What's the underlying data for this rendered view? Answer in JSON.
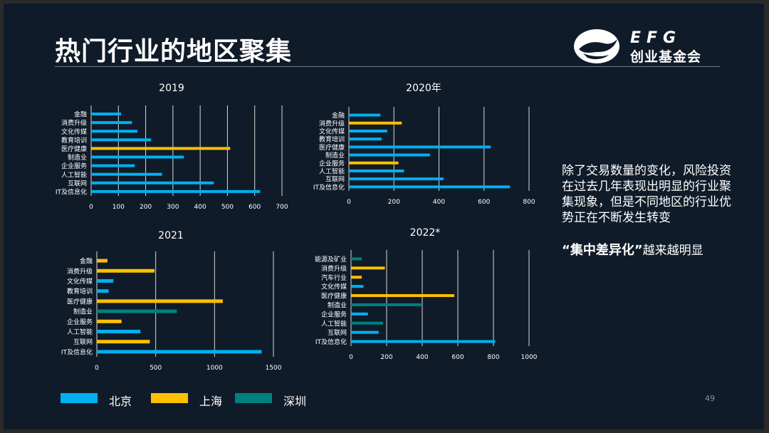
{
  "slide": {
    "title": "热门行业的地区聚集",
    "logo_text": "EFG",
    "logo_subtitle": "创业基金会",
    "side_text": "除了交易数量的变化，风险投资在过去几年表现出明显的行业聚集现象，但是不同地区的行业优势正在不断发生转变",
    "emphasis_quote": "“集中差异化”",
    "emphasis_rest": "越来越明显",
    "page_number": "49"
  },
  "colors": {
    "北京": "#00b0f0",
    "上海": "#ffc000",
    "深圳": "#00807f"
  },
  "legend": [
    {
      "label": "北京",
      "color": "#00b0f0"
    },
    {
      "label": "上海",
      "color": "#ffc000"
    },
    {
      "label": "深圳",
      "color": "#00807f"
    }
  ],
  "chart_data": [
    {
      "type": "bar",
      "orientation": "horizontal",
      "title": "2019",
      "xlim": [
        0,
        700
      ],
      "xticks": [
        0,
        100,
        200,
        300,
        400,
        500,
        600,
        700
      ],
      "categories": [
        "金融",
        "消费升级",
        "文化传媒",
        "教育培训",
        "医疗健康",
        "制造业",
        "企业服务",
        "人工智能",
        "互联网",
        "IT及信息化"
      ],
      "values": [
        110,
        150,
        170,
        220,
        510,
        340,
        160,
        260,
        450,
        620
      ],
      "region": [
        "北京",
        "北京",
        "北京",
        "北京",
        "上海",
        "北京",
        "北京",
        "北京",
        "北京",
        "北京"
      ],
      "grid": true
    },
    {
      "type": "bar",
      "orientation": "horizontal",
      "title": "2020年",
      "xlim": [
        0,
        800
      ],
      "xticks": [
        0,
        200,
        400,
        600,
        800
      ],
      "categories": [
        "金融",
        "消费升级",
        "文化传媒",
        "教育培训",
        "医疗健康",
        "制造业",
        "企业服务",
        "人工智能",
        "互联网",
        "IT及信息化"
      ],
      "values": [
        140,
        235,
        170,
        145,
        630,
        360,
        220,
        245,
        420,
        715
      ],
      "region": [
        "北京",
        "上海",
        "北京",
        "北京",
        "北京",
        "北京",
        "上海",
        "北京",
        "北京",
        "北京"
      ],
      "grid": true
    },
    {
      "type": "bar",
      "orientation": "horizontal",
      "title": "2021",
      "xlim": [
        0,
        1500
      ],
      "xticks": [
        0,
        500,
        1000,
        1500
      ],
      "categories": [
        "金融",
        "消费升级",
        "文化传媒",
        "教育培训",
        "医疗健康",
        "制造业",
        "企业服务",
        "人工智能",
        "互联网",
        "IT及信息化"
      ],
      "values": [
        90,
        490,
        140,
        100,
        1070,
        680,
        210,
        370,
        450,
        1400
      ],
      "region": [
        "上海",
        "上海",
        "北京",
        "北京",
        "上海",
        "深圳",
        "上海",
        "北京",
        "上海",
        "北京"
      ],
      "grid": true
    },
    {
      "type": "bar",
      "orientation": "horizontal",
      "title": "2022*",
      "xlim": [
        0,
        1000
      ],
      "xticks": [
        0,
        200,
        400,
        600,
        800,
        1000
      ],
      "categories": [
        "能源及矿业",
        "消费升级",
        "汽车行业",
        "文化传媒",
        "医疗健康",
        "制造业",
        "企业服务",
        "人工智能",
        "互联网",
        "IT及信息化"
      ],
      "values": [
        60,
        190,
        60,
        70,
        580,
        400,
        95,
        180,
        155,
        810
      ],
      "region": [
        "深圳",
        "上海",
        "上海",
        "北京",
        "上海",
        "深圳",
        "北京",
        "深圳",
        "北京",
        "北京"
      ],
      "grid": true
    }
  ]
}
